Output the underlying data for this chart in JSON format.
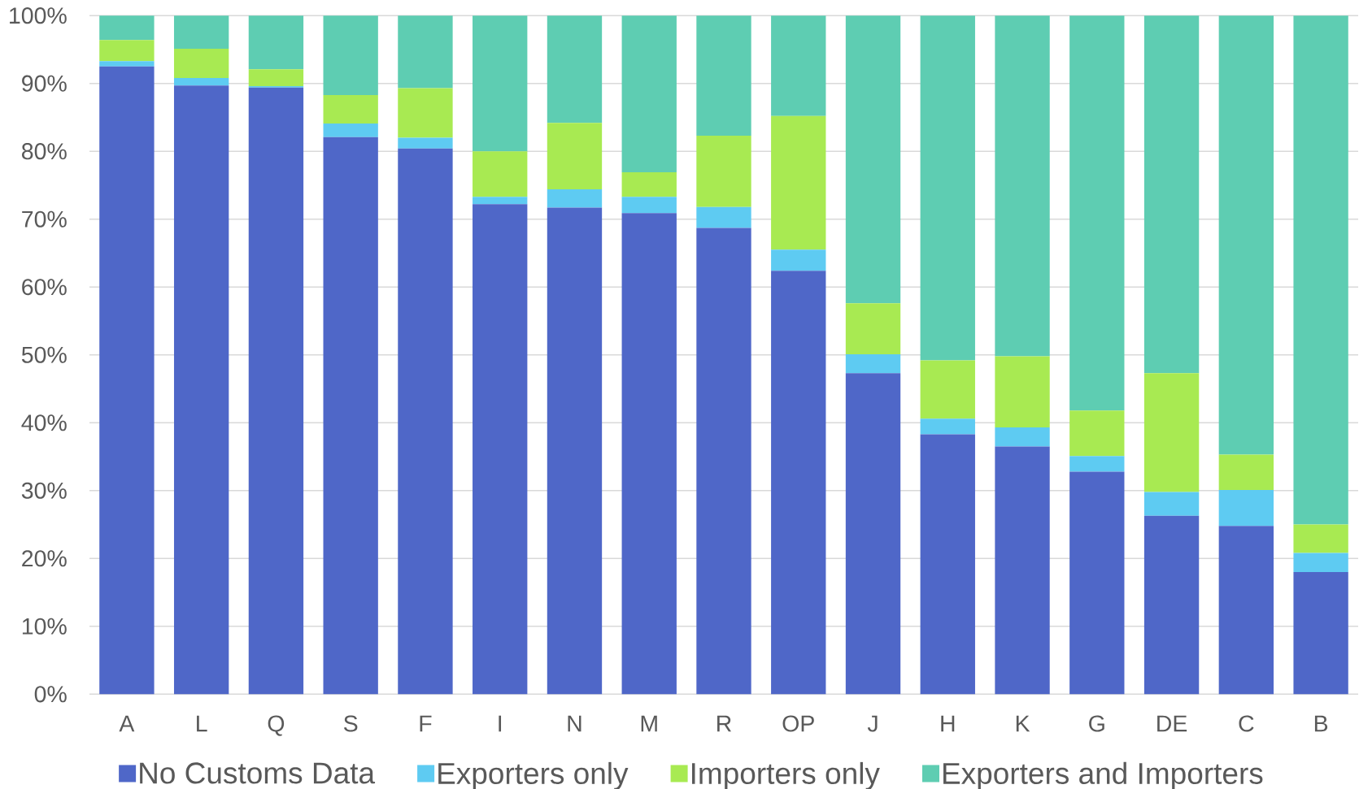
{
  "chart_data": {
    "type": "bar",
    "stacked": true,
    "categories": [
      "A",
      "L",
      "Q",
      "S",
      "F",
      "I",
      "N",
      "M",
      "R",
      "OP",
      "J",
      "H",
      "K",
      "G",
      "DE",
      "C",
      "B"
    ],
    "series": [
      {
        "name": "No Customs Data",
        "color": "#4f67c8",
        "values": [
          92.5,
          89.7,
          89.4,
          82.1,
          80.4,
          72.2,
          71.7,
          70.9,
          68.7,
          62.4,
          47.3,
          38.3,
          36.5,
          32.8,
          26.3,
          24.8,
          18.0
        ]
      },
      {
        "name": "Exporters only",
        "color": "#5ecbf2",
        "values": [
          0.8,
          1.1,
          0.2,
          2.0,
          1.6,
          1.1,
          2.7,
          2.4,
          3.1,
          3.1,
          2.8,
          2.3,
          2.8,
          2.3,
          3.5,
          5.3,
          2.8
        ]
      },
      {
        "name": "Importers only",
        "color": "#a8ea52",
        "values": [
          3.1,
          4.3,
          2.5,
          4.2,
          7.3,
          6.7,
          9.8,
          3.6,
          10.5,
          19.7,
          7.5,
          8.6,
          10.5,
          6.7,
          17.5,
          5.2,
          4.2
        ]
      },
      {
        "name": "Exporters and Importers",
        "color": "#5ecdb2",
        "values": [
          3.6,
          4.9,
          7.9,
          11.7,
          10.7,
          20.0,
          15.8,
          23.1,
          17.7,
          14.8,
          42.4,
          50.8,
          50.2,
          58.2,
          52.7,
          64.7,
          75.0
        ]
      }
    ],
    "ylim": [
      0,
      100
    ],
    "yticks": [
      {
        "value": 0,
        "label": "0%"
      },
      {
        "value": 10,
        "label": "10%"
      },
      {
        "value": 20,
        "label": "20%"
      },
      {
        "value": 30,
        "label": "30%"
      },
      {
        "value": 40,
        "label": "40%"
      },
      {
        "value": 50,
        "label": "50%"
      },
      {
        "value": 60,
        "label": "60%"
      },
      {
        "value": 70,
        "label": "70%"
      },
      {
        "value": 80,
        "label": "80%"
      },
      {
        "value": 90,
        "label": "90%"
      },
      {
        "value": 100,
        "label": "100%"
      }
    ],
    "grid": "y",
    "legend": "bottom"
  }
}
